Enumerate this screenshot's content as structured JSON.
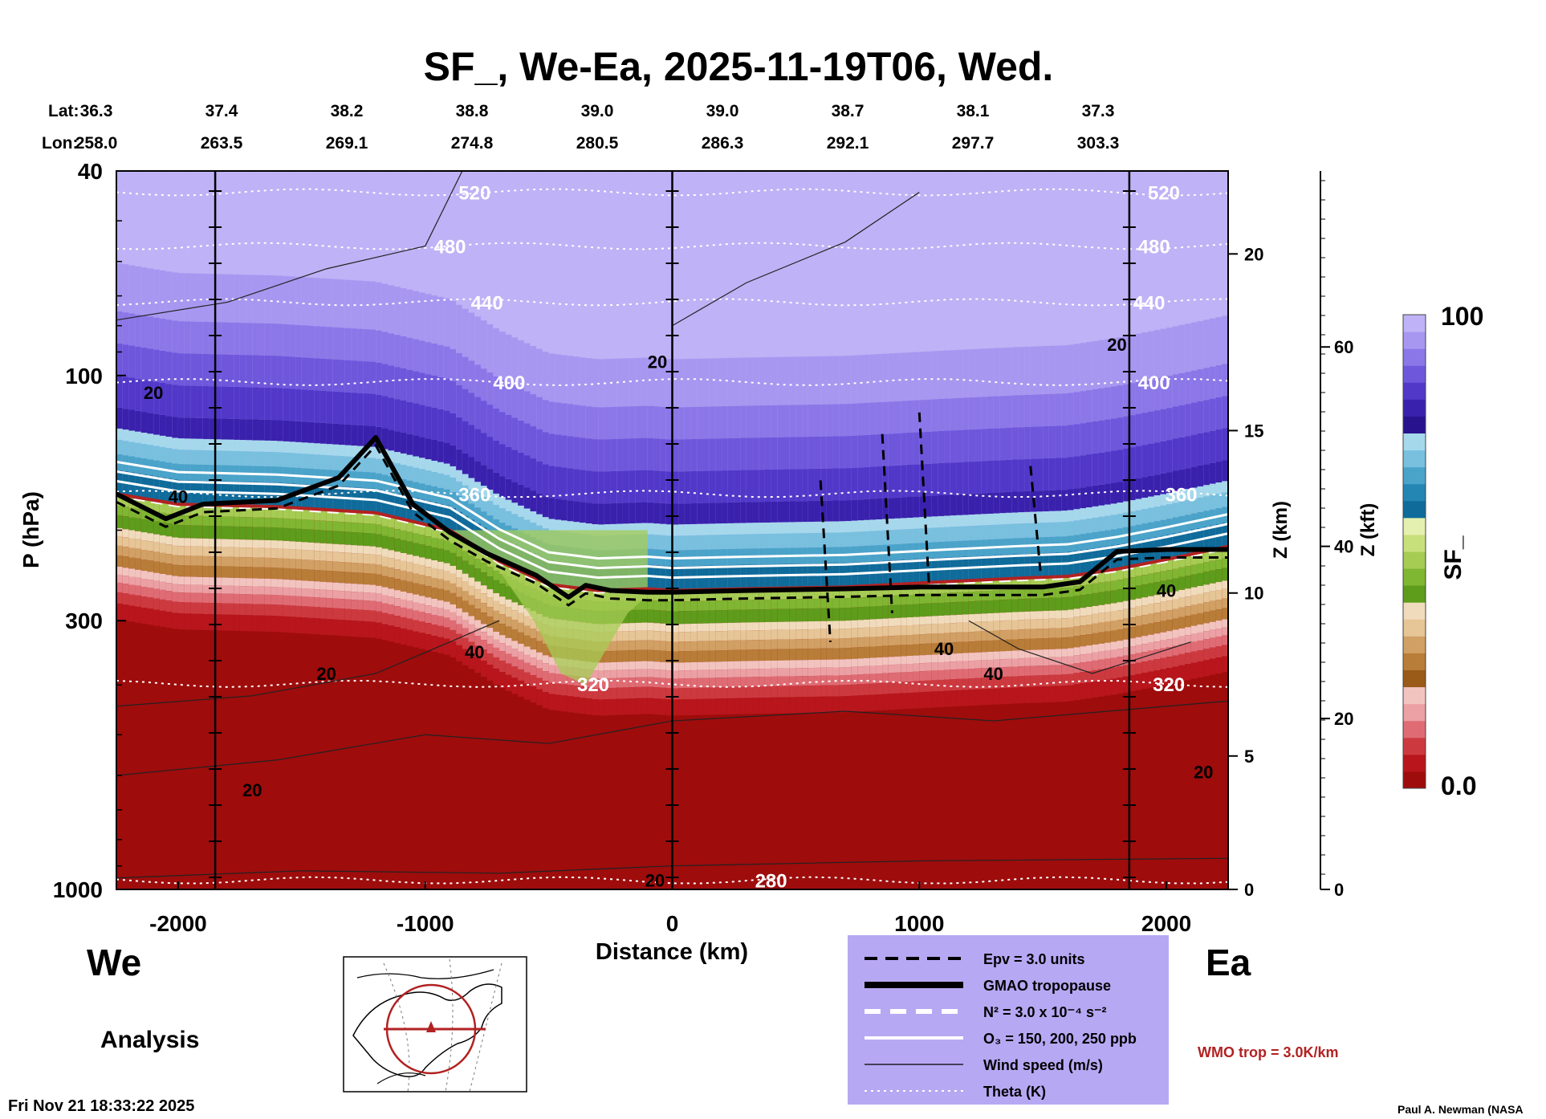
{
  "chart_data": {
    "type": "heatmap",
    "title": "SF_, We-Ea, 2025-11-19T06, Wed.",
    "xlabel": "Distance (km)",
    "ylabel": "P (hPa)",
    "xlim": [
      -2250,
      2250
    ],
    "ylim": [
      1000,
      40
    ],
    "y_scale": "log",
    "x_ticks": [
      -2000,
      -1000,
      0,
      1000,
      2000
    ],
    "x_tick_labels": [
      "-2000",
      "-1000",
      "0",
      "1000",
      "2000"
    ],
    "y_ticks": [
      40,
      100,
      300,
      1000
    ],
    "y_tick_labels": [
      "40",
      "100",
      "300",
      "1000"
    ],
    "z_km_axis": {
      "label": "Z (km)",
      "ticks": [
        {
          "label": "20",
          "p": 58
        },
        {
          "label": "15",
          "p": 128
        },
        {
          "label": "10",
          "p": 265
        },
        {
          "label": "5",
          "p": 550
        },
        {
          "label": "0",
          "p": 1000
        }
      ]
    },
    "z_kft_axis": {
      "label": "Z (kft)",
      "ticks": [
        {
          "label": "60",
          "p": 88
        },
        {
          "label": "40",
          "p": 215
        },
        {
          "label": "20",
          "p": 465
        },
        {
          "label": "0",
          "p": 1000
        }
      ]
    },
    "lat_header": "Lat:",
    "lon_header": "Lon:",
    "coordinates": [
      {
        "lat": "36.3",
        "lon": "258.0"
      },
      {
        "lat": "37.4",
        "lon": "263.5"
      },
      {
        "lat": "38.2",
        "lon": "269.1"
      },
      {
        "lat": "38.8",
        "lon": "274.8"
      },
      {
        "lat": "39.0",
        "lon": "280.5"
      },
      {
        "lat": "39.0",
        "lon": "286.3"
      },
      {
        "lat": "38.7",
        "lon": "292.1"
      },
      {
        "lat": "38.1",
        "lon": "297.7"
      },
      {
        "lat": "37.3",
        "lon": "303.3"
      }
    ],
    "tropopause_profile": {
      "x": [
        -2250,
        -2000,
        -1600,
        -1200,
        -900,
        -700,
        -500,
        -300,
        -100,
        0,
        300,
        700,
        1100,
        1400,
        1600,
        1800,
        2000,
        2250
      ],
      "p": [
        170,
        178,
        180,
        185,
        200,
        230,
        255,
        262,
        260,
        262,
        260,
        258,
        252,
        248,
        246,
        238,
        228,
        215
      ]
    },
    "gmao_tropopause": {
      "x": [
        -2250,
        -2050,
        -1900,
        -1600,
        -1350,
        -1200,
        -1050,
        -900,
        -750,
        -550,
        -420,
        -350,
        -250,
        -100,
        0,
        300,
        700,
        1000,
        1300,
        1500,
        1650,
        1800,
        2000,
        2250
      ],
      "p": [
        170,
        190,
        178,
        175,
        158,
        132,
        178,
        202,
        222,
        245,
        270,
        256,
        262,
        264,
        264,
        262,
        260,
        258,
        258,
        258,
        252,
        220,
        218,
        218
      ]
    },
    "colorbar": {
      "label": "SF_",
      "min_label": "0.0",
      "max_label": "100",
      "colors": [
        "#9e0c0c",
        "#b8161c",
        "#cc3a40",
        "#df6c74",
        "#eba0a4",
        "#f2c4c0",
        "#9a5a18",
        "#b87d38",
        "#d1a064",
        "#e6c596",
        "#f0dcbc",
        "#5e9c1c",
        "#7fb632",
        "#a6cc54",
        "#c8e07c",
        "#e4f0b0",
        "#0f6b9a",
        "#2486b3",
        "#4aa3c9",
        "#78c0de",
        "#a6d8ec",
        "#28128e",
        "#3a21ad",
        "#5238c9",
        "#6f57dc",
        "#8c77e8",
        "#a897f0",
        "#bfb2f6"
      ]
    },
    "theta_contours": [
      {
        "label": "520",
        "p": 44
      },
      {
        "label": "480",
        "p": 56
      },
      {
        "label": "440",
        "p": 72
      },
      {
        "label": "400",
        "p": 103
      },
      {
        "label": "360",
        "p": 170
      },
      {
        "label": "320",
        "p": 398
      },
      {
        "label": "280",
        "p": 960
      }
    ],
    "wind_labels": [
      "20",
      "20",
      "20",
      "20",
      "40",
      "40",
      "40",
      "40",
      "40",
      "20",
      "20",
      "20"
    ],
    "annotations": {
      "left_region": "We",
      "right_region": "Ea",
      "analysis": "Analysis",
      "timestamp": "Fri Nov 21 18:33:22 2025",
      "credit": "Paul A. Newman (NASA",
      "wmo": "WMO trop = 3.0K/km"
    },
    "legend": [
      {
        "label": "Epv = 3.0 units",
        "style": "black-dashed"
      },
      {
        "label": "GMAO tropopause",
        "style": "black-thick"
      },
      {
        "label": "N² = 3.0 x 10⁻⁴ s⁻²",
        "style": "white-dashed"
      },
      {
        "label": "O₃ = 150, 200, 250 ppb",
        "style": "white-solid"
      },
      {
        "label": "Wind speed (m/s)",
        "style": "black-thin"
      },
      {
        "label": "Theta (K)",
        "style": "white-dotted"
      }
    ]
  },
  "colors": {
    "legend_bg": "#b7a8f4",
    "wmo_red": "#b22222"
  }
}
